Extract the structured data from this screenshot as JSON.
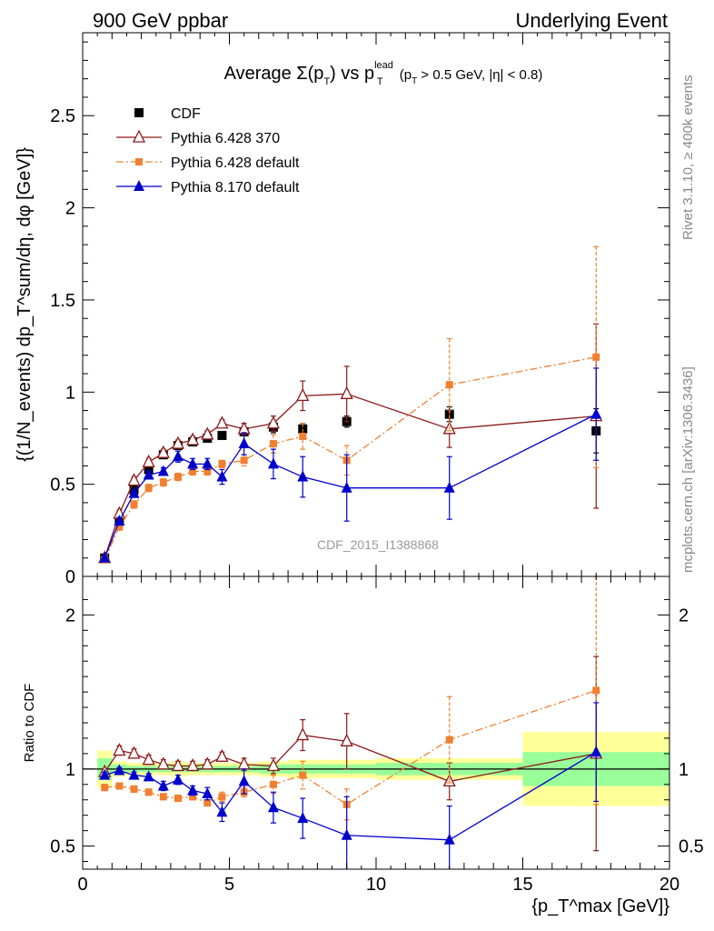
{
  "header": {
    "left": "900 GeV ppbar",
    "right": "Underlying Event"
  },
  "side_text": {
    "rivet": "Rivet 3.1.10, ≥ 400k events",
    "mcplots": "mcplots.cern.ch [arXiv:1306.3436]"
  },
  "chart_data": [
    {
      "type": "scatter",
      "title": "Average Σ(p_T) vs p_T^lead (p_T > 0.5 GeV, |η| < 0.8)",
      "title_parts": {
        "pre": "Average ",
        "sigma": "Σ(p",
        "sub1": "T",
        "mid": ") vs p",
        "sup": "lead",
        "sub2": "T",
        "post": " (p",
        "sub3": "T",
        "tail": " > 0.5 GeV, |η| < 0.8)"
      },
      "ylabel": "{(1/N_events) dp_T^sum/dη, dφ [GeV]}",
      "xlabel": "{p_T^max [GeV]}",
      "analysis_label": "CDF_2015_I1388868",
      "xlim": [
        0,
        20
      ],
      "ylim": [
        0,
        2.95
      ],
      "yticks": [
        {
          "v": 0,
          "label": "0"
        },
        {
          "v": 0.5,
          "label": "0.5"
        },
        {
          "v": 1,
          "label": "1"
        },
        {
          "v": 1.5,
          "label": "1.5"
        },
        {
          "v": 2,
          "label": "2"
        },
        {
          "v": 2.5,
          "label": "2.5"
        }
      ],
      "legend_position": "top-left",
      "series": [
        {
          "name": "CDF",
          "color": "#000000",
          "marker": "square",
          "line": "none",
          "x": [
            0.75,
            1.25,
            1.75,
            2.25,
            2.75,
            3.25,
            3.75,
            4.25,
            4.75,
            5.5,
            6.5,
            7.5,
            9.0,
            12.5,
            17.5
          ],
          "y": [
            0.1,
            0.3,
            0.47,
            0.58,
            0.66,
            0.71,
            0.73,
            0.75,
            0.765,
            0.785,
            0.81,
            0.8,
            0.84,
            0.88,
            0.79
          ],
          "err": [
            0.01,
            0.02,
            0.02,
            0.02,
            0.02,
            0.02,
            0.02,
            0.02,
            0.02,
            0.02,
            0.03,
            0.03,
            0.03,
            0.04,
            0.12
          ]
        },
        {
          "name": "Pythia 6.428 370",
          "color": "#8b1a1a",
          "marker": "triangle-open",
          "line": "solid",
          "x": [
            0.75,
            1.25,
            1.75,
            2.25,
            2.75,
            3.25,
            3.75,
            4.25,
            4.75,
            5.5,
            6.5,
            7.5,
            9.0,
            12.5,
            17.5
          ],
          "y": [
            0.1,
            0.34,
            0.52,
            0.62,
            0.67,
            0.72,
            0.74,
            0.77,
            0.83,
            0.8,
            0.83,
            0.98,
            0.99,
            0.8,
            0.87
          ],
          "err": [
            0.01,
            0.02,
            0.02,
            0.02,
            0.02,
            0.02,
            0.02,
            0.02,
            0.02,
            0.03,
            0.04,
            0.08,
            0.15,
            0.1,
            0.5
          ]
        },
        {
          "name": "Pythia 6.428 default",
          "color": "#f08030",
          "marker": "square-small",
          "line": "dashdot",
          "x": [
            0.75,
            1.25,
            1.75,
            2.25,
            2.75,
            3.25,
            3.75,
            4.25,
            4.75,
            5.5,
            6.5,
            7.5,
            9.0,
            12.5,
            17.5
          ],
          "y": [
            0.09,
            0.27,
            0.39,
            0.48,
            0.51,
            0.54,
            0.57,
            0.57,
            0.61,
            0.63,
            0.72,
            0.76,
            0.63,
            1.04,
            1.19
          ],
          "err": [
            0.01,
            0.02,
            0.02,
            0.02,
            0.02,
            0.02,
            0.02,
            0.02,
            0.02,
            0.03,
            0.05,
            0.07,
            0.08,
            0.25,
            0.6
          ]
        },
        {
          "name": "Pythia 8.170 default",
          "color": "#0000cc",
          "marker": "triangle-filled",
          "line": "solid",
          "x": [
            0.75,
            1.25,
            1.75,
            2.25,
            2.75,
            3.25,
            3.75,
            4.25,
            4.75,
            5.5,
            6.5,
            7.5,
            9.0,
            12.5,
            17.5
          ],
          "y": [
            0.1,
            0.3,
            0.45,
            0.55,
            0.57,
            0.65,
            0.61,
            0.61,
            0.54,
            0.72,
            0.61,
            0.54,
            0.48,
            0.48,
            0.88
          ],
          "err": [
            0.01,
            0.02,
            0.02,
            0.02,
            0.02,
            0.03,
            0.03,
            0.03,
            0.04,
            0.06,
            0.08,
            0.11,
            0.18,
            0.17,
            0.25
          ]
        }
      ]
    },
    {
      "type": "scatter",
      "ylabel": "Ratio to CDF",
      "xlim": [
        0,
        20
      ],
      "ylim": [
        0.35,
        2.25
      ],
      "yticks": [
        {
          "v": 0.5,
          "label": "0.5"
        },
        {
          "v": 1,
          "label": "1"
        },
        {
          "v": 2,
          "label": "2"
        }
      ],
      "xticks": [
        {
          "v": 0,
          "label": "0"
        },
        {
          "v": 5,
          "label": "5"
        },
        {
          "v": 10,
          "label": "10"
        },
        {
          "v": 15,
          "label": "15"
        },
        {
          "v": 20,
          "label": "20"
        }
      ],
      "bands": {
        "x_edges": [
          0.5,
          1.0,
          1.5,
          2.0,
          2.5,
          3.0,
          3.5,
          4.0,
          4.5,
          5.0,
          6.0,
          7.0,
          8.0,
          10.0,
          15.0,
          20.0
        ],
        "stat_sys_rel": [
          0.12,
          0.05,
          0.04,
          0.04,
          0.04,
          0.05,
          0.04,
          0.04,
          0.04,
          0.04,
          0.05,
          0.06,
          0.06,
          0.07,
          0.24
        ],
        "stat_rel": [
          0.07,
          0.03,
          0.02,
          0.02,
          0.02,
          0.02,
          0.02,
          0.02,
          0.02,
          0.02,
          0.03,
          0.03,
          0.03,
          0.04,
          0.11
        ],
        "outer_color": "#ffff99",
        "inner_color": "#99ff99"
      },
      "series": [
        {
          "name": "Pythia 6.428 370",
          "color": "#8b1a1a",
          "marker": "triangle-open",
          "line": "solid",
          "x": [
            0.75,
            1.25,
            1.75,
            2.25,
            2.75,
            3.25,
            3.75,
            4.25,
            4.75,
            5.5,
            6.5,
            7.5,
            9.0,
            12.5,
            17.5
          ],
          "y": [
            0.98,
            1.12,
            1.1,
            1.06,
            1.03,
            1.02,
            1.02,
            1.03,
            1.08,
            1.03,
            1.02,
            1.22,
            1.18,
            0.92,
            1.1
          ],
          "err": [
            0.02,
            0.03,
            0.03,
            0.03,
            0.03,
            0.03,
            0.03,
            0.03,
            0.03,
            0.04,
            0.05,
            0.1,
            0.18,
            0.12,
            0.63
          ]
        },
        {
          "name": "Pythia 6.428 default",
          "color": "#f08030",
          "marker": "square-small",
          "line": "dashdot",
          "x": [
            0.75,
            1.25,
            1.75,
            2.25,
            2.75,
            3.25,
            3.75,
            4.25,
            4.75,
            5.5,
            6.5,
            7.5,
            9.0,
            12.5,
            17.5
          ],
          "y": [
            0.88,
            0.89,
            0.87,
            0.85,
            0.82,
            0.81,
            0.82,
            0.78,
            0.82,
            0.85,
            0.9,
            0.96,
            0.77,
            1.19,
            1.51
          ],
          "err": [
            0.02,
            0.02,
            0.02,
            0.02,
            0.02,
            0.02,
            0.02,
            0.02,
            0.03,
            0.03,
            0.06,
            0.09,
            0.1,
            0.28,
            0.74
          ]
        },
        {
          "name": "Pythia 8.170 default",
          "color": "#0000cc",
          "marker": "triangle-filled",
          "line": "solid",
          "x": [
            0.75,
            1.25,
            1.75,
            2.25,
            2.75,
            3.25,
            3.75,
            4.25,
            4.75,
            5.5,
            6.5,
            7.5,
            9.0,
            12.5,
            17.5
          ],
          "y": [
            0.96,
            0.99,
            0.96,
            0.95,
            0.89,
            0.93,
            0.86,
            0.84,
            0.72,
            0.92,
            0.75,
            0.68,
            0.57,
            0.54,
            1.11
          ],
          "err": [
            0.02,
            0.02,
            0.02,
            0.02,
            0.03,
            0.03,
            0.03,
            0.04,
            0.06,
            0.08,
            0.1,
            0.13,
            0.25,
            0.22,
            0.32
          ]
        }
      ]
    }
  ]
}
